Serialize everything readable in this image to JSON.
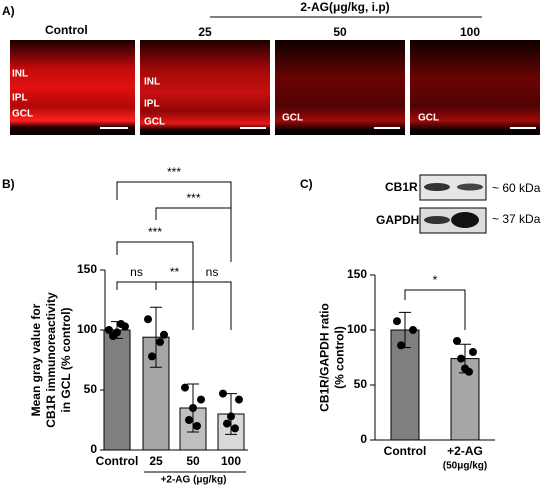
{
  "panel_a": {
    "label": "A)",
    "control": "Control",
    "treatment": "2-AG(μg/kg, i.p)",
    "doses": [
      "25",
      "50",
      "100"
    ],
    "layers": {
      "inl": "INL",
      "ipl": "IPL",
      "gcl": "GCL"
    }
  },
  "blot": {
    "label": "C)",
    "bands": [
      "CB1R",
      "GAPDH"
    ],
    "sizes": [
      "~ 60 kDa",
      "~ 37 kDa"
    ]
  },
  "panel_b_label": "B)",
  "chart_data": [
    {
      "type": "bar",
      "ylabel": [
        "Mean gray value for",
        "CB1R immunoreactivity",
        "in GCL (% control)"
      ],
      "categories": [
        "Control",
        "25",
        "50",
        "100"
      ],
      "values": [
        100,
        94,
        35,
        30
      ],
      "errors": [
        7,
        25,
        20,
        17
      ],
      "colors": [
        "#7f7f7f",
        "#a6a6a6",
        "#bfbfbf",
        "#d9d9d9"
      ],
      "points": [
        [
          100,
          103,
          95,
          105,
          98
        ],
        [
          109,
          96,
          78,
          90
        ],
        [
          52,
          42,
          25,
          20,
          35
        ],
        [
          47,
          42,
          22,
          18,
          28
        ]
      ],
      "group_label": "+2-AG (μg/kg)",
      "significance": [
        "***",
        "***",
        "***",
        "ns",
        "**",
        "ns"
      ],
      "ylim": [
        0,
        150
      ],
      "yticks": [
        0,
        50,
        100,
        150
      ]
    },
    {
      "type": "bar",
      "ylabel": [
        "CB1R/GAPDH ratio",
        "(% control)"
      ],
      "categories": [
        "Control",
        "+2-AG"
      ],
      "values": [
        100,
        74
      ],
      "errors": [
        16,
        13
      ],
      "colors": [
        "#7f7f7f",
        "#a6a6a6"
      ],
      "points": [
        [
          108,
          100,
          86
        ],
        [
          90,
          80,
          74,
          62,
          65
        ]
      ],
      "x_note": "(50μg/kg)",
      "significance": [
        "*"
      ],
      "ylim": [
        0,
        150
      ],
      "yticks": [
        0,
        50,
        100,
        150
      ]
    }
  ]
}
